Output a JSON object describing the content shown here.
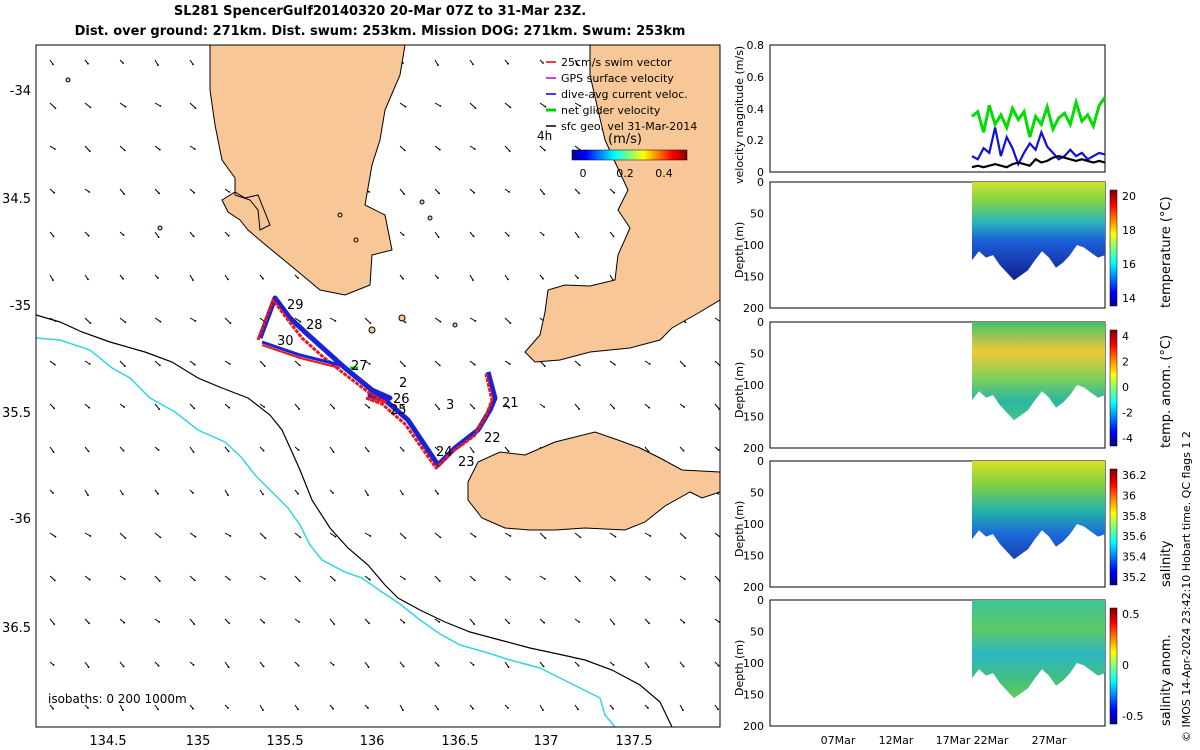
{
  "title": {
    "line1": "SL281 SpencerGulf20140320 20-Mar 07Z to 31-Mar 23Z.",
    "line2": "Dist. over ground: 271km. Dist. swum: 253km. Mission DOG: 271km. Swum: 253km"
  },
  "map": {
    "lon_ticks": [
      "134.5",
      "135",
      "135.5",
      "136",
      "136.5",
      "137",
      "137.5"
    ],
    "lat_ticks": [
      "-34",
      "34.5",
      "-35",
      "35.5",
      "-36",
      "36.5"
    ],
    "legend": [
      {
        "label": "25cm/s swim vector",
        "color": "#e00000"
      },
      {
        "label": "GPS surface velocity",
        "color": "#cc00cc"
      },
      {
        "label": "dive-avg current veloc.",
        "color": "#0000dd"
      },
      {
        "label": "net glider velocity",
        "color": "#00cc00"
      },
      {
        "label": "sfc geo. vel 31-Mar-2014",
        "color": "#000000"
      }
    ],
    "legend_time": "4h",
    "colorbar_label": "(m/s)",
    "colorbar_ticks": [
      "0",
      "0.2",
      "0.4"
    ],
    "isobaths_label": "isobaths: 0   200  1000m",
    "day_labels": [
      "21",
      "22",
      "23",
      "24",
      "25",
      "26",
      "27",
      "28",
      "29",
      "30",
      "2",
      "3"
    ],
    "colors": {
      "land": "#f8c797",
      "coast_200": "#33d4e8",
      "coast_1000": "#000000",
      "track_red": "#e8191b",
      "track_blue": "#1a22d8"
    }
  },
  "chart_data": [
    {
      "type": "line",
      "ylabel": "velocity magnitude (m/s)",
      "ylim": [
        0,
        0.8
      ],
      "yticks": [
        "0",
        "0.2",
        "0.4",
        "0.6",
        "0.8"
      ],
      "series": [
        {
          "name": "net glider velocity",
          "color": "#00dd00",
          "values": [
            0.35,
            0.38,
            0.25,
            0.42,
            0.3,
            0.36,
            0.28,
            0.4,
            0.33,
            0.38,
            0.22,
            0.35,
            0.3,
            0.41,
            0.27,
            0.34,
            0.37,
            0.3,
            0.44,
            0.32,
            0.36,
            0.29,
            0.42,
            0.47
          ]
        },
        {
          "name": "dive-avg current veloc.",
          "color": "#1010dd",
          "values": [
            0.1,
            0.08,
            0.15,
            0.12,
            0.28,
            0.1,
            0.22,
            0.15,
            0.05,
            0.12,
            0.18,
            0.14,
            0.25,
            0.16,
            0.12,
            0.08,
            0.1,
            0.14,
            0.1,
            0.12,
            0.08,
            0.1,
            0.12,
            0.11
          ]
        },
        {
          "name": "sfc geo. vel",
          "color": "#000000",
          "values": [
            0.03,
            0.04,
            0.03,
            0.04,
            0.05,
            0.04,
            0.03,
            0.05,
            0.06,
            0.05,
            0.04,
            0.08,
            0.06,
            0.07,
            0.09,
            0.1,
            0.09,
            0.08,
            0.07,
            0.08,
            0.07,
            0.06,
            0.07,
            0.06
          ]
        }
      ]
    },
    {
      "type": "heatmap",
      "ylabel": "Depth (m)",
      "colorbar_label": "temperature (°C)",
      "yticks": [
        "0",
        "50",
        "100",
        "150",
        "200"
      ],
      "cticks": [
        "14",
        "16",
        "18",
        "20"
      ]
    },
    {
      "type": "heatmap",
      "ylabel": "Depth (m)",
      "colorbar_label": "temp. anom. (°C)",
      "yticks": [
        "0",
        "50",
        "100",
        "150",
        "200"
      ],
      "cticks": [
        "-4",
        "-2",
        "0",
        "2",
        "4"
      ]
    },
    {
      "type": "heatmap",
      "ylabel": "Depth (m)",
      "colorbar_label": "salinity",
      "yticks": [
        "0",
        "50",
        "100",
        "150",
        "200"
      ],
      "cticks": [
        "35.2",
        "35.4",
        "35.6",
        "35.8",
        "36",
        "36.2"
      ]
    },
    {
      "type": "heatmap",
      "ylabel": "Depth (m)",
      "colorbar_label": "salinity anom.",
      "yticks": [
        "0",
        "50",
        "100",
        "150",
        "200"
      ],
      "cticks": [
        "-0.5",
        "0",
        "0.5"
      ],
      "xticks": [
        "07Mar",
        "12Mar",
        "17Mar",
        "22Mar",
        "27Mar"
      ]
    }
  ],
  "credit": "© IMOS 14-Apr-2024 23:42:10 Hobart time. QC flags 1  2"
}
